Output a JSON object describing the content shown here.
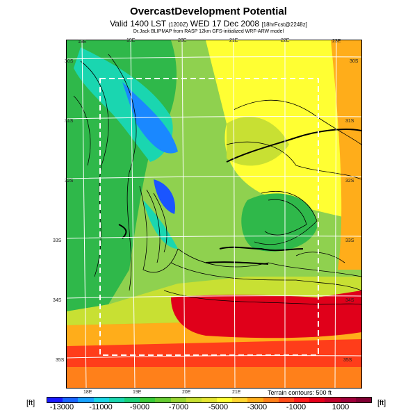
{
  "title": "OvercastDevelopment Potential",
  "subtitle": "Valid 1400 LST",
  "subtitle_code": "(1200Z)",
  "subtitle_date": "WED 17 Dec 2008",
  "subtitle_run": "[18hrFcst@2248z]",
  "credit": "Dr.Jack BLIPMAP from RASP 12km GFS-initialized WRF-ARW model",
  "longitudes_top": [
    "18E",
    "19E",
    "20E",
    "21E",
    "22E",
    "23E"
  ],
  "longitudes_bottom": [
    "18E",
    "19E",
    "20E",
    "21E"
  ],
  "latitudes_left": [
    "30S",
    "31S",
    "32S",
    "33S",
    "34S",
    "35S"
  ],
  "latitudes_right": [
    "30S",
    "31S",
    "32S",
    "33S",
    "34S",
    "35S"
  ],
  "terrain_note": "Terrain contours: 500 ft",
  "colorbar": {
    "unit_left": "[ft]",
    "unit_right": "[ft]",
    "ticks": [
      "-13000",
      "-11000",
      "-9000",
      "-7000",
      "-5000",
      "-3000",
      "-1000",
      "1000"
    ],
    "colors": [
      "#1a1aff",
      "#1a66ff",
      "#1aa3ff",
      "#1ad6e6",
      "#1ad6b0",
      "#1ad17a",
      "#3acc3a",
      "#66cc33",
      "#99d633",
      "#c8e033",
      "#e6e633",
      "#ffff33",
      "#ffd633",
      "#ffad1a",
      "#ff801a",
      "#ff4d1a",
      "#ff1a1a",
      "#e6001a",
      "#c0002a",
      "#a0003a",
      "#800033"
    ]
  },
  "map_colors": {
    "green": "#2fb84a",
    "light_green": "#8fd14f",
    "yellow_green": "#c8e033",
    "yellow": "#ffff33",
    "orange": "#ffad1a",
    "red": "#ff3d1a",
    "dark_red": "#e0001a",
    "cyan": "#1ad6b0",
    "blue": "#1a88ff",
    "deep_blue": "#1a55ff"
  }
}
